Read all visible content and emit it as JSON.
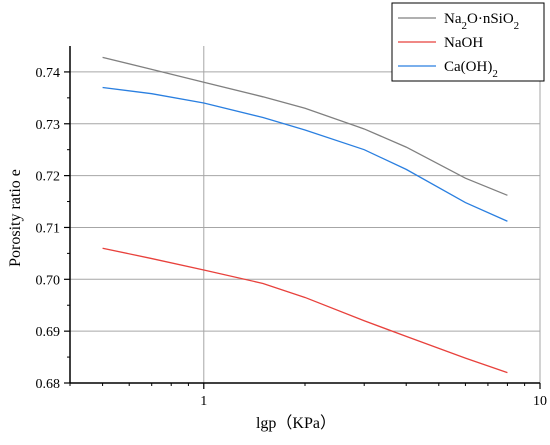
{
  "chart_data": {
    "type": "line",
    "title": "",
    "xlabel": "lgp（KPa）",
    "ylabel": "Porosity ratio e",
    "xscale": "log",
    "xlim": [
      0.4,
      10
    ],
    "ylim": [
      0.68,
      0.745
    ],
    "x_ticks": [
      1,
      10
    ],
    "x_tick_labels": [
      "1",
      "10"
    ],
    "y_ticks": [
      0.68,
      0.69,
      0.7,
      0.71,
      0.72,
      0.73,
      0.74
    ],
    "y_tick_labels": [
      "0.68",
      "0.69",
      "0.70",
      "0.71",
      "0.72",
      "0.73",
      "0.74"
    ],
    "grid": true,
    "legend_position": "top-right",
    "x": [
      0.5,
      0.7,
      1,
      1.5,
      2,
      3,
      4,
      6,
      8
    ],
    "series": [
      {
        "name": "Na2O·nSiO2",
        "name_main": "Na",
        "name_sub1": "2",
        "name_mid": "O·nSiO",
        "name_sub2": "2",
        "color": "#808080",
        "values": [
          0.7428,
          0.7405,
          0.738,
          0.7352,
          0.733,
          0.729,
          0.7255,
          0.7195,
          0.7162
        ]
      },
      {
        "name": "NaOH",
        "name_main": "NaOH",
        "color": "#e8413c",
        "values": [
          0.706,
          0.704,
          0.7018,
          0.6992,
          0.6965,
          0.692,
          0.689,
          0.6848,
          0.682
        ]
      },
      {
        "name": "Ca(OH)2",
        "name_main": "Ca(OH)",
        "name_sub1": "2",
        "color": "#2a7fe0",
        "values": [
          0.737,
          0.7358,
          0.734,
          0.7312,
          0.7288,
          0.725,
          0.7212,
          0.7148,
          0.7112
        ]
      }
    ]
  }
}
